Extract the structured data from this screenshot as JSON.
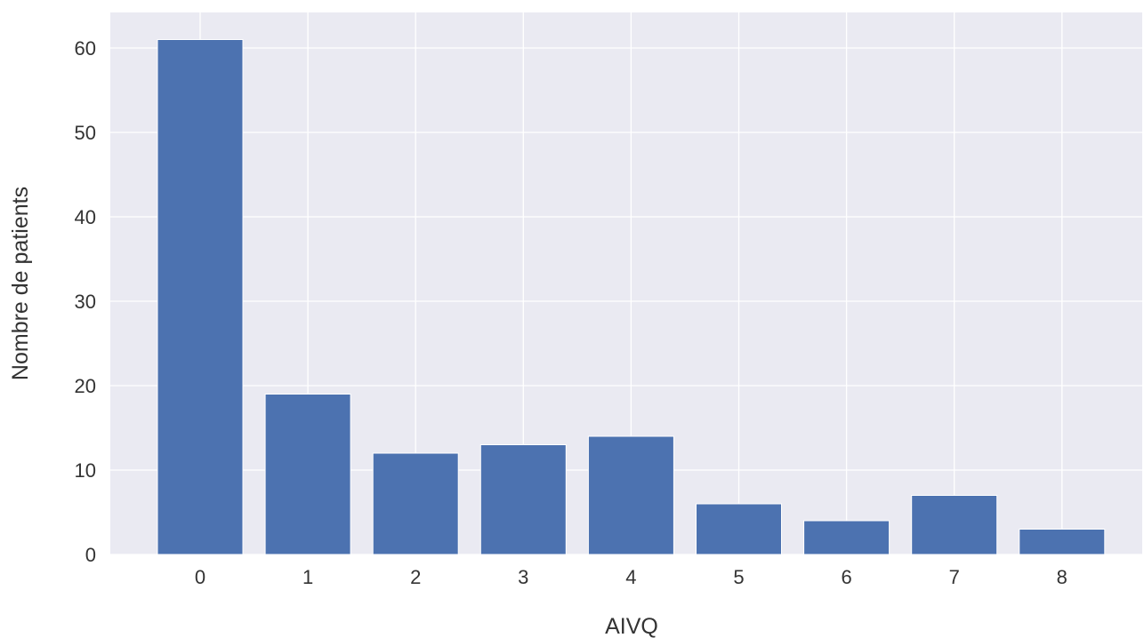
{
  "chart_data": {
    "type": "bar",
    "title": "",
    "xlabel": "AIVQ",
    "ylabel": "Nombre de patients",
    "categories": [
      "0",
      "1",
      "2",
      "3",
      "4",
      "5",
      "6",
      "7",
      "8"
    ],
    "values": [
      61,
      19,
      12,
      13,
      14,
      6,
      4,
      7,
      3
    ],
    "ylim": [
      0,
      64
    ],
    "yticks": [
      0,
      10,
      20,
      30,
      40,
      50,
      60
    ],
    "grid": true,
    "legend": "none",
    "colors": {
      "bar": "#4c72b0",
      "plot_background": "#eaeaf2",
      "grid": "#ffffff",
      "text": "#333333"
    }
  }
}
